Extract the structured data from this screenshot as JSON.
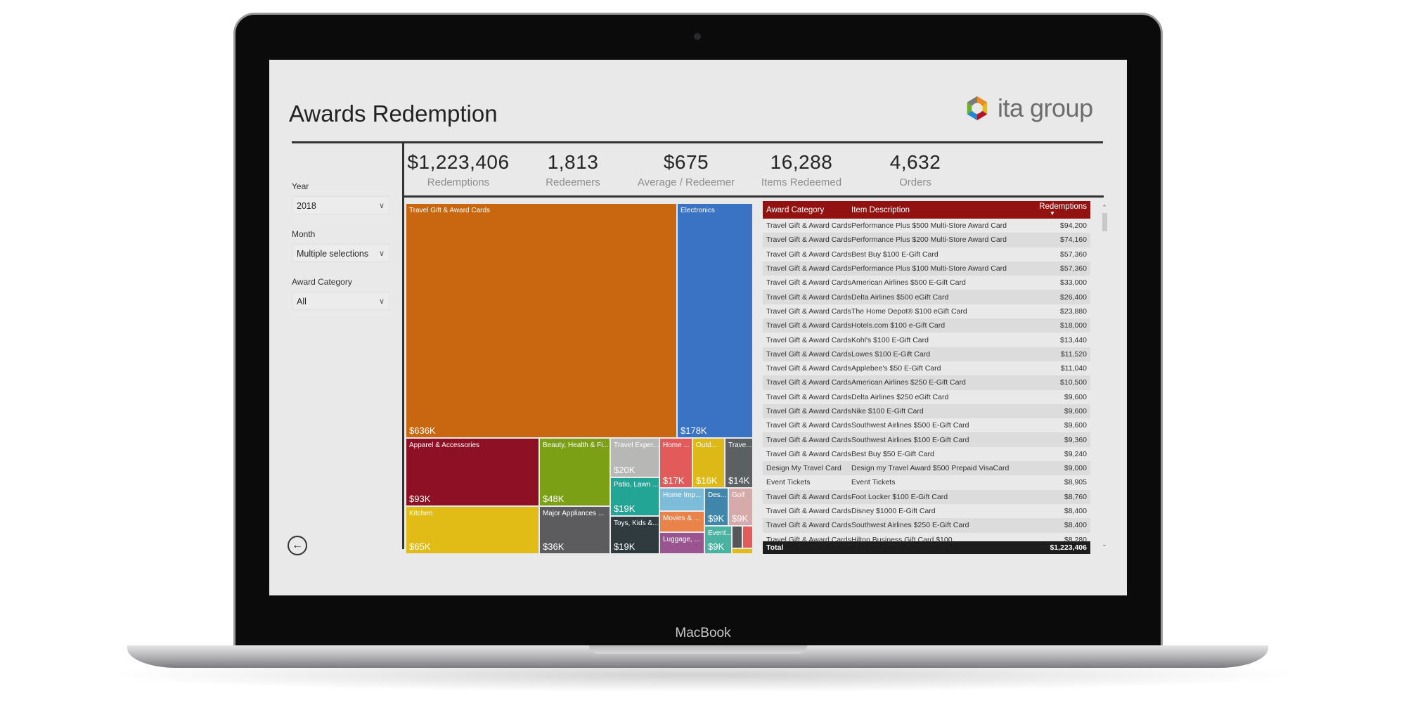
{
  "device": {
    "brand": "MacBook"
  },
  "report": {
    "title": "Awards Redemption",
    "logo_text": "ita group"
  },
  "filters": [
    {
      "label": "Year",
      "value": "2018"
    },
    {
      "label": "Month",
      "value": "Multiple selections"
    },
    {
      "label": "Award Category",
      "value": "All"
    }
  ],
  "kpis": [
    {
      "value": "$1,223,406",
      "label": "Redemptions"
    },
    {
      "value": "1,813",
      "label": "Redeemers"
    },
    {
      "value": "$675",
      "label": "Average / Redeemer"
    },
    {
      "value": "16,288",
      "label": "Items Redeemed"
    },
    {
      "value": "4,632",
      "label": "Orders"
    }
  ],
  "treemap": [
    {
      "label": "Travel Gift & Award Cards",
      "value": "$636K",
      "color": "#c8670f"
    },
    {
      "label": "Electronics",
      "value": "$178K",
      "color": "#3a73c4"
    },
    {
      "label": "Apparel & Accessories",
      "value": "$93K",
      "color": "#8e1024"
    },
    {
      "label": "Kitchen",
      "value": "$65K",
      "color": "#e2bc16"
    },
    {
      "label": "Beauty, Health & Fi...",
      "value": "$48K",
      "color": "#7ba016"
    },
    {
      "label": "Major Appliances ...",
      "value": "$36K",
      "color": "#5c5c5e"
    },
    {
      "label": "Travel Exper...",
      "value": "$20K",
      "color": "#b7b7b5"
    },
    {
      "label": "Patio, Lawn ...",
      "value": "$19K",
      "color": "#22a594"
    },
    {
      "label": "Toys, Kids &...",
      "value": "$19K",
      "color": "#2f3b3e"
    },
    {
      "label": "Home ...",
      "value": "$17K",
      "color": "#e25a5a"
    },
    {
      "label": "Outd...",
      "value": "$16K",
      "color": "#dcb916"
    },
    {
      "label": "Trave...",
      "value": "$14K",
      "color": "#5b6062"
    },
    {
      "label": "Home Imp...",
      "value": "",
      "color": "#7dbcd9"
    },
    {
      "label": "Movies & ...",
      "value": "",
      "color": "#e98349"
    },
    {
      "label": "Luggage, ...",
      "value": "",
      "color": "#9a5591"
    },
    {
      "label": "Des...",
      "value": "$9K",
      "color": "#3f86aa"
    },
    {
      "label": "Golf",
      "value": "$9K",
      "color": "#d6aaaa"
    },
    {
      "label": "Event...",
      "value": "$9K",
      "color": "#49b2a0"
    },
    {
      "label": "",
      "value": "",
      "color": "#555759"
    },
    {
      "label": "",
      "value": "",
      "color": "#e25a5a"
    },
    {
      "label": "",
      "value": "",
      "color": "#e2bc16"
    }
  ],
  "table": {
    "columns": [
      "Award Category",
      "Item Description",
      "Redemptions"
    ],
    "sort_column": "Redemptions",
    "sort_direction": "descending",
    "rows": [
      [
        "Travel Gift & Award Cards",
        "Performance Plus $500 Multi-Store Award Card",
        "$94,200"
      ],
      [
        "Travel Gift & Award Cards",
        "Performance Plus $200 Multi-Store Award Card",
        "$74,160"
      ],
      [
        "Travel Gift & Award Cards",
        "Best Buy $100 E-Gift Card",
        "$57,360"
      ],
      [
        "Travel Gift & Award Cards",
        "Performance Plus $100 Multi-Store Award Card",
        "$57,360"
      ],
      [
        "Travel Gift & Award Cards",
        "American Airlines $500 E-Gift Card",
        "$33,000"
      ],
      [
        "Travel Gift & Award Cards",
        "Delta Airlines $500 eGift Card",
        "$26,400"
      ],
      [
        "Travel Gift & Award Cards",
        "The Home Depot® $100 eGift Card",
        "$23,880"
      ],
      [
        "Travel Gift & Award Cards",
        "Hotels.com $100 e-Gift Card",
        "$18,000"
      ],
      [
        "Travel Gift & Award Cards",
        "Kohl's $100 E-Gift Card",
        "$13,440"
      ],
      [
        "Travel Gift & Award Cards",
        "Lowes $100 E-Gift Card",
        "$11,520"
      ],
      [
        "Travel Gift & Award Cards",
        "Applebee's $50 E-Gift Card",
        "$11,040"
      ],
      [
        "Travel Gift & Award Cards",
        "American Airlines $250 E-Gift Card",
        "$10,500"
      ],
      [
        "Travel Gift & Award Cards",
        "Delta Airlines $250 eGift Card",
        "$9,600"
      ],
      [
        "Travel Gift & Award Cards",
        "Nike $100 E-Gift Card",
        "$9,600"
      ],
      [
        "Travel Gift & Award Cards",
        "Southwest Airlines $500 E-Gift Card",
        "$9,600"
      ],
      [
        "Travel Gift & Award Cards",
        "Southwest Airlines $100 E-Gift Card",
        "$9,360"
      ],
      [
        "Travel Gift & Award Cards",
        "Best Buy $50 E-Gift Card",
        "$9,240"
      ],
      [
        "Design My Travel Card",
        "Design my Travel Award $500 Prepaid VisaCard",
        "$9,000"
      ],
      [
        "Event Tickets",
        "Event Tickets",
        "$8,905"
      ],
      [
        "Travel Gift & Award Cards",
        "Foot Locker $100 E-Gift Card",
        "$8,760"
      ],
      [
        "Travel Gift & Award Cards",
        "Disney $1000 E-Gift Card",
        "$8,400"
      ],
      [
        "Travel Gift & Award Cards",
        "Southwest Airlines $250 E-Gift Card",
        "$8,400"
      ],
      [
        "Travel Gift & Award Cards",
        "Hilton Business Gift Card $100",
        "$8,280"
      ]
    ],
    "total_label": "Total",
    "total_value": "$1,223,406"
  }
}
